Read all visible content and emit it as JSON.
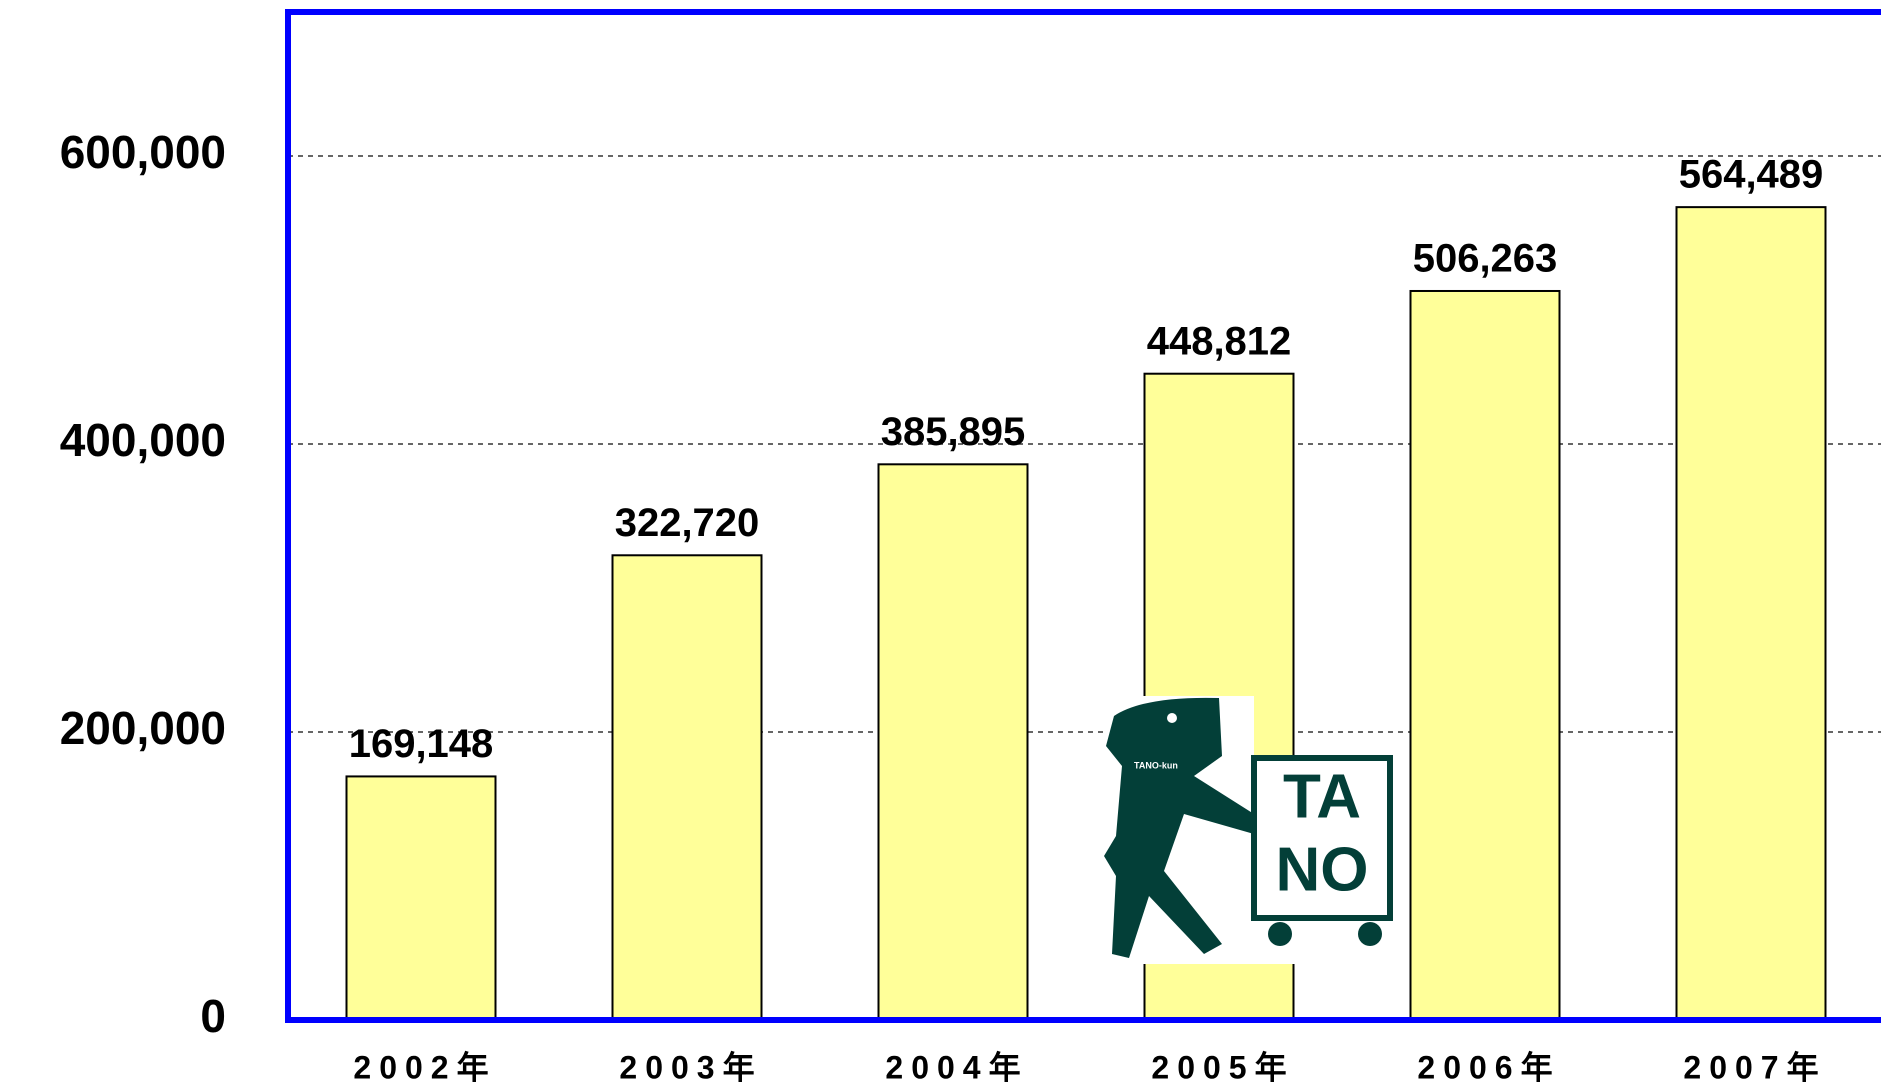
{
  "chart_data": {
    "type": "bar",
    "categories": [
      "2002年",
      "2003年",
      "2004年",
      "2005年",
      "2006年",
      "2007年"
    ],
    "values": [
      169148,
      322720,
      385895,
      448812,
      506263,
      564489
    ],
    "value_labels": [
      "169,148",
      "322,720",
      "385,895",
      "448,812",
      "506,263",
      "564,489"
    ],
    "color": "#ffff99",
    "axis_color": "#0000ff",
    "ylim": [
      0,
      700000
    ],
    "yticks": [
      {
        "value": 0,
        "label": "0"
      },
      {
        "value": 200000,
        "label": "200,000"
      },
      {
        "value": 400000,
        "label": "400,000"
      },
      {
        "value": 600000,
        "label": "600,000"
      }
    ],
    "grid": true
  },
  "logo": {
    "name": "TANO-kun",
    "letters": [
      "TA",
      "NO"
    ]
  }
}
